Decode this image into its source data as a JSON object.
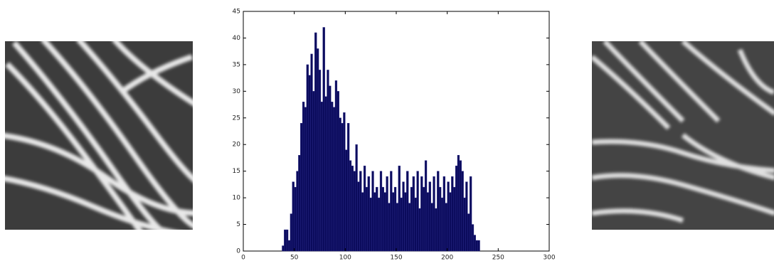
{
  "chart_data": {
    "type": "histogram",
    "bins": [
      36,
      38,
      40,
      42,
      44,
      46,
      48,
      50,
      52,
      54,
      56,
      58,
      60,
      62,
      64,
      66,
      68,
      70,
      72,
      74,
      76,
      78,
      80,
      82,
      84,
      86,
      88,
      90,
      92,
      94,
      96,
      98,
      100,
      102,
      104,
      106,
      108,
      110,
      112,
      114,
      116,
      118,
      120,
      122,
      124,
      126,
      128,
      130,
      132,
      134,
      136,
      138,
      140,
      142,
      144,
      146,
      148,
      150,
      152,
      154,
      156,
      158,
      160,
      162,
      164,
      166,
      168,
      170,
      172,
      174,
      176,
      178,
      180,
      182,
      184,
      186,
      188,
      190,
      192,
      194,
      196,
      198,
      200,
      202,
      204,
      206,
      208,
      210,
      212,
      214,
      216,
      218,
      220,
      222,
      224,
      226,
      228,
      230,
      232,
      234
    ],
    "values": [
      0,
      1,
      4,
      4,
      2,
      7,
      13,
      12,
      15,
      18,
      24,
      28,
      27,
      35,
      33,
      37,
      30,
      41,
      38,
      34,
      28,
      42,
      29,
      34,
      31,
      28,
      27,
      32,
      30,
      25,
      24,
      26,
      19,
      24,
      17,
      16,
      15,
      20,
      13,
      15,
      11,
      16,
      12,
      14,
      10,
      15,
      11,
      12,
      10,
      15,
      12,
      11,
      14,
      9,
      15,
      11,
      12,
      9,
      16,
      10,
      13,
      11,
      15,
      9,
      12,
      14,
      10,
      15,
      8,
      14,
      12,
      17,
      11,
      13,
      9,
      14,
      8,
      15,
      12,
      10,
      14,
      9,
      13,
      11,
      14,
      12,
      16,
      18,
      17,
      15,
      10,
      13,
      7,
      14,
      5,
      3,
      2,
      2,
      0
    ],
    "color": "#0b0b5c",
    "xlim": [
      0,
      300
    ],
    "xticks": [
      0,
      50,
      100,
      150,
      200,
      250,
      300
    ],
    "ylim": [
      0,
      45
    ],
    "yticks": [
      0,
      5,
      10,
      15,
      20,
      25,
      30,
      35,
      40,
      45
    ]
  }
}
